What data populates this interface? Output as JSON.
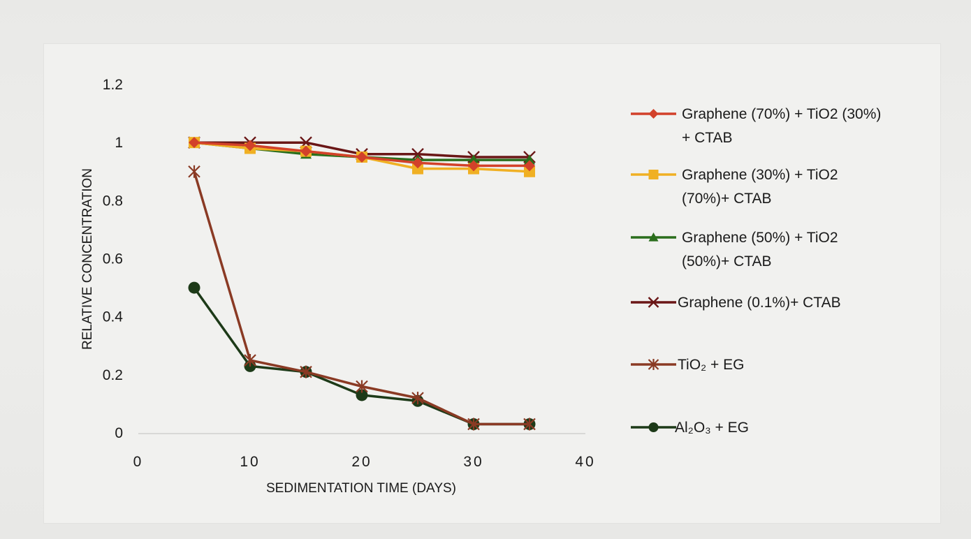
{
  "chart_data": {
    "type": "line",
    "title": "",
    "xlabel": "SEDIMENTATION TIME (DAYS)",
    "ylabel": "RELATIVE CONCENTRATION",
    "xlim": [
      0,
      40
    ],
    "ylim": [
      0,
      1.2
    ],
    "x_ticks": [
      "0",
      "10",
      "20",
      "30",
      "40"
    ],
    "y_ticks": [
      "0",
      "0.2",
      "0.4",
      "0.6",
      "0.8",
      "1",
      "1.2"
    ],
    "grid": false,
    "legend_position": "right",
    "series": [
      {
        "name_lines": [
          "Graphene (70%) + TiO2 (30%)",
          "+ CTAB"
        ],
        "color": "#d2412a",
        "marker": "diamond",
        "x": [
          5,
          10,
          15,
          20,
          25,
          30,
          35
        ],
        "y": [
          1.0,
          0.99,
          0.97,
          0.95,
          0.93,
          0.92,
          0.92
        ]
      },
      {
        "name_lines": [
          "Graphene (30%) + TiO2",
          "(70%)+ CTAB"
        ],
        "color": "#f0b023",
        "marker": "square",
        "x": [
          5,
          10,
          15,
          20,
          25,
          30,
          35
        ],
        "y": [
          1.0,
          0.98,
          0.97,
          0.95,
          0.91,
          0.91,
          0.9
        ]
      },
      {
        "name_lines": [
          "Graphene (50%) + TiO2",
          "(50%)+ CTAB"
        ],
        "color": "#2a6e1c",
        "marker": "triangle",
        "x": [
          5,
          10,
          15,
          20,
          25,
          30,
          35
        ],
        "y": [
          1.0,
          0.98,
          0.96,
          0.95,
          0.94,
          0.94,
          0.94
        ]
      },
      {
        "name_lines": [
          "Graphene (0.1%)+ CTAB"
        ],
        "color": "#6a1616",
        "marker": "x",
        "x": [
          5,
          10,
          15,
          20,
          25,
          30,
          35
        ],
        "y": [
          1.0,
          1.0,
          1.0,
          0.96,
          0.96,
          0.95,
          0.95
        ]
      },
      {
        "name_lines": [
          "TiO₂  + EG"
        ],
        "color": "#8a3a24",
        "marker": "star",
        "x": [
          5,
          10,
          15,
          20,
          25,
          30,
          35
        ],
        "y": [
          0.9,
          0.25,
          0.21,
          0.16,
          0.12,
          0.03,
          0.03
        ]
      },
      {
        "name_lines": [
          "Al₂O₃  + EG"
        ],
        "color": "#1d3a18",
        "marker": "circle",
        "x": [
          5,
          10,
          15,
          20,
          25,
          30,
          35
        ],
        "y": [
          0.5,
          0.23,
          0.21,
          0.13,
          0.11,
          0.03,
          0.03
        ]
      }
    ]
  }
}
